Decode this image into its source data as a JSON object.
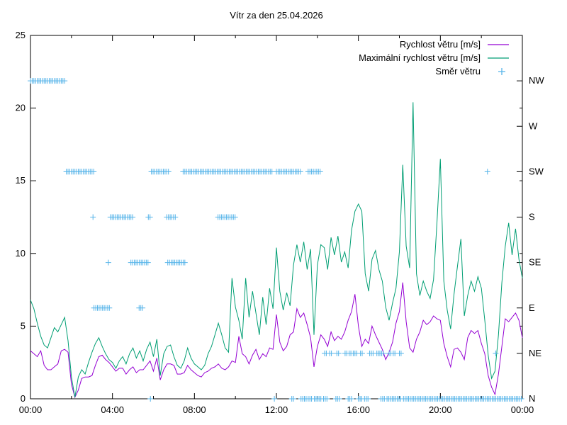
{
  "title": "Vítr za den 25.04.2026",
  "legend": {
    "position": "top-right-inside",
    "items": [
      {
        "label": "Rychlost větru [m/s]",
        "type": "line",
        "color": "#9400D3"
      },
      {
        "label": "Maximální rychlost větru [m/s]",
        "type": "line",
        "color": "#009E73"
      },
      {
        "label": "Směr větru",
        "type": "plus-marker",
        "color": "#56B4E9"
      }
    ]
  },
  "chart_data": {
    "type": "line",
    "title": "Vítr za den 25.04.2026",
    "x_unit": "hours",
    "x_range": [
      0,
      24
    ],
    "grid": false,
    "background": "#ffffff",
    "frame_color": "#000000",
    "x_axis": {
      "major_hours": [
        0,
        4,
        8,
        12,
        16,
        20,
        24
      ],
      "major_labels": [
        "00:00",
        "04:00",
        "08:00",
        "12:00",
        "16:00",
        "20:00",
        "00:00"
      ],
      "minor_hours": [
        2,
        6,
        10,
        14,
        18,
        22
      ]
    },
    "y_left_axis": {
      "range": [
        0,
        25
      ],
      "ticks": [
        0,
        5,
        10,
        15,
        20,
        25
      ],
      "unit": "m/s"
    },
    "y_right_axis": {
      "description": "wind direction",
      "labels": [
        "N",
        "NE",
        "E",
        "SE",
        "S",
        "SW",
        "W",
        "NW"
      ],
      "values": [
        0,
        3.125,
        6.25,
        9.375,
        12.5,
        15.625,
        18.75,
        21.875
      ],
      "mirror_numeric_ticks": [
        5,
        10,
        15,
        20
      ]
    },
    "sample_step_minutes": 10,
    "series": [
      {
        "name": "Rychlost větru [m/s]",
        "color": "#9400D3",
        "values": [
          3.3,
          3.1,
          2.9,
          3.3,
          2.3,
          2.0,
          2.0,
          2.2,
          2.4,
          3.3,
          3.4,
          3.2,
          1.0,
          0.1,
          0.6,
          1.4,
          1.5,
          1.5,
          1.6,
          2.3,
          2.9,
          3.0,
          2.7,
          2.5,
          2.2,
          1.9,
          2.1,
          2.1,
          1.7,
          2.0,
          2.2,
          1.8,
          2.0,
          2.0,
          2.3,
          2.6,
          1.9,
          2.8,
          1.3,
          2.0,
          2.4,
          2.4,
          2.3,
          1.7,
          1.7,
          1.8,
          2.3,
          2.0,
          1.8,
          1.6,
          1.5,
          1.8,
          1.9,
          2.1,
          2.2,
          2.4,
          2.1,
          2.0,
          2.2,
          2.6,
          2.5,
          4.3,
          3.1,
          2.9,
          2.4,
          3.0,
          3.4,
          2.7,
          3.1,
          2.9,
          3.5,
          3.4,
          5.8,
          3.9,
          3.3,
          3.6,
          4.4,
          4.6,
          6.2,
          5.6,
          5.9,
          5.1,
          4.2,
          2.2,
          3.6,
          4.4,
          4.1,
          3.6,
          4.6,
          4.0,
          4.3,
          4.1,
          4.6,
          5.4,
          6.0,
          7.2,
          5.0,
          3.6,
          4.1,
          3.8,
          5.0,
          4.4,
          3.9,
          3.4,
          2.7,
          3.2,
          3.9,
          5.2,
          6.0,
          8.0,
          5.3,
          3.5,
          3.2,
          4.1,
          4.6,
          5.4,
          5.1,
          5.3,
          5.7,
          5.5,
          5.4,
          3.8,
          2.9,
          2.2,
          3.4,
          3.5,
          3.2,
          2.7,
          4.2,
          4.7,
          4.5,
          4.7,
          3.8,
          3.1,
          1.6,
          0.8,
          0.3,
          1.7,
          3.6,
          5.5,
          5.3,
          5.6,
          5.9,
          5.4,
          4.2
        ]
      },
      {
        "name": "Maximální rychlost větru [m/s]",
        "color": "#009E73",
        "values": [
          6.8,
          6.2,
          5.2,
          4.3,
          3.7,
          3.5,
          4.2,
          4.9,
          4.6,
          5.1,
          5.6,
          4.0,
          1.5,
          0.1,
          1.5,
          2.0,
          1.7,
          2.5,
          3.2,
          3.8,
          4.2,
          3.6,
          3.1,
          2.7,
          2.5,
          2.1,
          2.6,
          2.9,
          2.4,
          3.1,
          3.5,
          2.8,
          3.3,
          2.6,
          3.4,
          3.9,
          2.9,
          4.1,
          1.6,
          3.1,
          3.6,
          3.7,
          2.9,
          2.3,
          2.1,
          2.6,
          3.5,
          2.8,
          2.4,
          2.2,
          2.0,
          2.3,
          3.1,
          3.6,
          4.4,
          5.2,
          4.4,
          3.5,
          3.2,
          8.3,
          6.3,
          5.4,
          4.1,
          8.3,
          5.6,
          7.4,
          5.9,
          4.4,
          7.0,
          5.1,
          7.6,
          6.2,
          10.4,
          7.4,
          6.1,
          7.3,
          6.4,
          9.2,
          10.6,
          9.4,
          10.8,
          8.9,
          10.3,
          4.4,
          9.2,
          10.6,
          10.4,
          8.9,
          11.1,
          9.9,
          11.2,
          9.4,
          10.1,
          9.0,
          11.6,
          12.9,
          13.4,
          12.9,
          8.6,
          7.4,
          9.6,
          10.2,
          8.9,
          8.1,
          6.3,
          5.4,
          6.6,
          7.6,
          10.1,
          16.1,
          10.5,
          9.0,
          20.4,
          8.6,
          7.1,
          8.1,
          7.4,
          6.9,
          8.2,
          12.1,
          16.5,
          8.1,
          6.1,
          4.8,
          7.2,
          9.1,
          11.0,
          5.7,
          7.1,
          8.1,
          7.4,
          8.4,
          7.6,
          5.4,
          3.0,
          1.4,
          1.9,
          4.4,
          8.0,
          10.5,
          12.1,
          9.9,
          11.7,
          9.6,
          8.3
        ]
      }
    ],
    "direction_series": {
      "name": "Směr větru",
      "color": "#56B4E9",
      "marker": "plus",
      "step_minutes": 5,
      "dir_values": {
        "N": 0,
        "NE": 3.125,
        "E": 6.25,
        "SE": 9.375,
        "S": 12.5,
        "SW": 15.625,
        "W": 18.75,
        "NW": 21.875
      },
      "segments": [
        {
          "from": 0.0,
          "to": 1.7,
          "dir": "NW"
        },
        {
          "from": 1.75,
          "to": 3.05,
          "dir": "SW"
        },
        {
          "from": 3.05,
          "to": 3.05,
          "dir": "S"
        },
        {
          "from": 3.1,
          "to": 3.85,
          "dir": "E"
        },
        {
          "from": 3.8,
          "to": 3.8,
          "dir": "SE"
        },
        {
          "from": 3.9,
          "to": 5.0,
          "dir": "S"
        },
        {
          "from": 4.9,
          "to": 5.75,
          "dir": "SE"
        },
        {
          "from": 5.3,
          "to": 5.45,
          "dir": "E"
        },
        {
          "from": 5.75,
          "to": 5.8,
          "dir": "S"
        },
        {
          "from": 5.85,
          "to": 5.85,
          "dir": "N"
        },
        {
          "from": 5.9,
          "to": 6.7,
          "dir": "SW"
        },
        {
          "from": 6.65,
          "to": 7.1,
          "dir": "S"
        },
        {
          "from": 6.7,
          "to": 7.5,
          "dir": "SE"
        },
        {
          "from": 7.45,
          "to": 10.6,
          "dir": "SW"
        },
        {
          "from": 9.15,
          "to": 9.95,
          "dir": "S"
        },
        {
          "from": 10.7,
          "to": 11.75,
          "dir": "SW"
        },
        {
          "from": 11.9,
          "to": 11.9,
          "dir": "N"
        },
        {
          "from": 12.0,
          "to": 13.15,
          "dir": "SW"
        },
        {
          "from": 12.75,
          "to": 12.8,
          "dir": "N"
        },
        {
          "from": 13.2,
          "to": 13.45,
          "dir": "N"
        },
        {
          "from": 13.55,
          "to": 14.15,
          "dir": "SW"
        },
        {
          "from": 13.55,
          "to": 13.7,
          "dir": "N"
        },
        {
          "from": 13.85,
          "to": 13.9,
          "dir": "N"
        },
        {
          "from": 14.0,
          "to": 14.2,
          "dir": "N"
        },
        {
          "from": 14.3,
          "to": 14.5,
          "dir": "N"
        },
        {
          "from": 14.35,
          "to": 14.45,
          "dir": "NE"
        },
        {
          "from": 14.6,
          "to": 14.7,
          "dir": "NE"
        },
        {
          "from": 14.9,
          "to": 15.1,
          "dir": "N"
        },
        {
          "from": 14.95,
          "to": 15.05,
          "dir": "NE"
        },
        {
          "from": 15.35,
          "to": 15.4,
          "dir": "NE"
        },
        {
          "from": 15.5,
          "to": 15.65,
          "dir": "N"
        },
        {
          "from": 15.55,
          "to": 15.6,
          "dir": "NE"
        },
        {
          "from": 15.75,
          "to": 15.9,
          "dir": "NE"
        },
        {
          "from": 16.0,
          "to": 16.2,
          "dir": "N"
        },
        {
          "from": 16.1,
          "to": 16.15,
          "dir": "NE"
        },
        {
          "from": 16.3,
          "to": 16.45,
          "dir": "N"
        },
        {
          "from": 16.55,
          "to": 16.75,
          "dir": "NE"
        },
        {
          "from": 16.9,
          "to": 16.95,
          "dir": "NE"
        },
        {
          "from": 17.05,
          "to": 17.2,
          "dir": "NE"
        },
        {
          "from": 17.1,
          "to": 17.3,
          "dir": "N"
        },
        {
          "from": 17.4,
          "to": 17.55,
          "dir": "N"
        },
        {
          "from": 17.5,
          "to": 17.55,
          "dir": "NE"
        },
        {
          "from": 17.65,
          "to": 17.8,
          "dir": "N"
        },
        {
          "from": 17.7,
          "to": 17.8,
          "dir": "NE"
        },
        {
          "from": 17.9,
          "to": 18.1,
          "dir": "N"
        },
        {
          "from": 18.0,
          "to": 18.1,
          "dir": "NE"
        },
        {
          "from": 18.2,
          "to": 24.0,
          "dir": "N"
        },
        {
          "from": 22.3,
          "to": 22.3,
          "dir": "SW"
        },
        {
          "from": 22.7,
          "to": 22.7,
          "dir": "NE"
        }
      ]
    }
  }
}
